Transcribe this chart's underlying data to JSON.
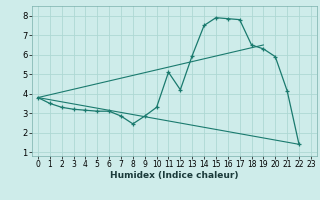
{
  "xlabel": "Humidex (Indice chaleur)",
  "bg_color": "#ceecea",
  "grid_color": "#aed8d4",
  "line_color": "#1a7a6e",
  "xlim": [
    -0.5,
    23.5
  ],
  "ylim": [
    0.8,
    8.5
  ],
  "xticks": [
    0,
    1,
    2,
    3,
    4,
    5,
    6,
    7,
    8,
    9,
    10,
    11,
    12,
    13,
    14,
    15,
    16,
    17,
    18,
    19,
    20,
    21,
    22,
    23
  ],
  "yticks": [
    1,
    2,
    3,
    4,
    5,
    6,
    7,
    8
  ],
  "series1_x": [
    0,
    1,
    2,
    3,
    4,
    5,
    6,
    7,
    8,
    9,
    10,
    11,
    12,
    13,
    14,
    15,
    16,
    17,
    18,
    19,
    20,
    21,
    22
  ],
  "series1_y": [
    3.8,
    3.5,
    3.3,
    3.2,
    3.15,
    3.1,
    3.1,
    2.85,
    2.45,
    2.85,
    3.3,
    5.1,
    4.2,
    5.95,
    7.5,
    7.9,
    7.85,
    7.8,
    6.5,
    6.3,
    5.9,
    4.15,
    1.4
  ],
  "series2_x": [
    0,
    19
  ],
  "series2_y": [
    3.8,
    6.5
  ],
  "series3_x": [
    0,
    22
  ],
  "series3_y": [
    3.8,
    1.4
  ]
}
